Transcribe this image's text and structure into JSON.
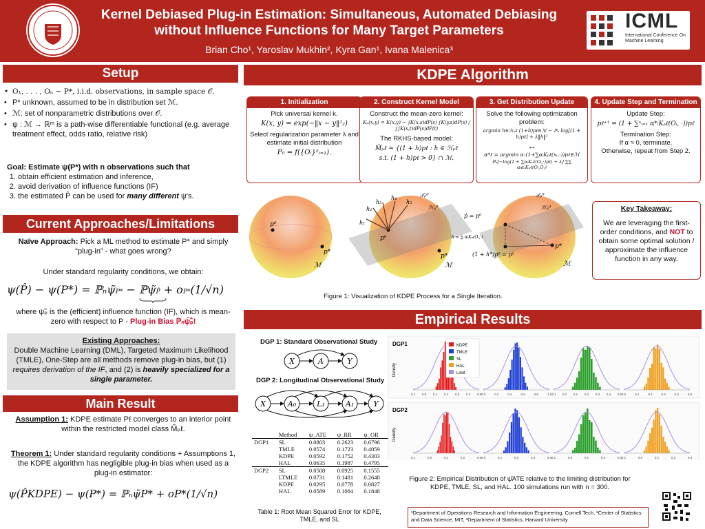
{
  "header": {
    "title": "Kernel Debiased Plug-in Estimation: Simultaneous, Automated Debiasing without Influence Functions for Many Target Parameters",
    "authors": "Brian Cho¹, Yaroslav Mukhin², Kyra Gan¹, Ivana Malenica³",
    "left_logo_text": "CORNELL UNIVERSITY",
    "icml_logo": "ICML",
    "icml_sub": "International Conference On Machine Learning",
    "colors": {
      "brand_red": "#b3261e",
      "accent_red": "#c8102e"
    }
  },
  "setup": {
    "title": "Setup",
    "items": [
      "O₁, . . . , Oₙ ∼ P*, i.i.d. observations, in sample space 𝒪.",
      "P* unknown, assumed to be in distribution set ℳ.",
      "ℳ: set of nonparametric distributions over 𝒪.",
      "ψ : ℳ → ℝᵐ is a path-wise differentiable functional (e.g. average treatment effect, odds ratio, relative risk)"
    ],
    "goal_prefix": "Goal: Estimate ψ(P*) with n observations such that",
    "goals": [
      "obtain efficient estimation and inference,",
      "avoid derivation of influence functions (IF)"
    ],
    "goal3_prefix": "the estimated P̂ can be used for ",
    "goal3_emph": "many different",
    "goal3_suffix": " ψ's."
  },
  "current": {
    "title": "Current Approaches/Limitations",
    "naive_label": "Naïve Approach:",
    "naive_text": " Pick a ML method to estimate P* and simply “plug-in” - what goes wrong?",
    "regularity": "Under standard regularity conditions, we obtain:",
    "equation_lhs": "ψ(P̂) − ψ(P*) = ℙₙψ̃",
    "equation_mid": "ℙψ̃",
    "equation_rhs": "+ o",
    "equation_tail": "(1/√n)",
    "where_text": "where ψ̃ₚ is the (efficient) influence function (IF), which is mean-zero with respect to P - ",
    "plugin_bias": "Plug-in Bias ℙₙψ̃ₚ̂!",
    "existing": {
      "title": "Existing Approaches:",
      "line1": "Double Machine Learning (DML), Targeted Maximum Likelihood (TMLE), One-Step are all methods remove plug-in bias, but (1) ",
      "emph1": "requires derivation of the IF",
      "line2": ", and (2) is ",
      "emph2": "heavily specialized for a single parameter."
    }
  },
  "main_result": {
    "title": "Main Result",
    "assumption_label": "Assumption 1:",
    "assumption_text": " KDPE estimate Pℓ converges to an interior point within the restricted model class M̃ₚℓ.",
    "theorem_label": "Theorem 1:",
    "theorem_text": " Under standard regularity conditions + Assumptions 1, the KDPE algorithm has negligible plug-in bias when used as a plug-in estimator:",
    "equation": "ψ(P̂KDPE) − ψ(P*) = ℙₙψ̃P* + oP*(1/√n)"
  },
  "kdpe": {
    "title": "KDPE Algorithm",
    "steps": [
      {
        "head": "1. Initialization",
        "l1": "Pick universal kernel k.",
        "f1": "K(x, y) = exp(−‖x − y‖²₂)",
        "l2": "Select regularization parameter λ and estimate initial distribution",
        "f2": "P₀ = f({Oᵢ}ⁿᵢ₌₁)."
      },
      {
        "head": "2. Construct Kernel Model",
        "l1": "Construct the mean-zero kernel:",
        "f1": "Kₚ(x,y) = K(x,y) − ∫K(x,s)dP(s) ∫K(y,s)dP(s) / ∫∫K(s,t)dP(s)dP(t)",
        "l2": "The RKHS-based model:",
        "f2": "M̃ₚℓ = {(1 + h)pℓ : h ∈ ℋₚℓ",
        "f3": "s.t. (1 + h)pℓ > 0} ∩ ℳ."
      },
      {
        "head": "3. Get Distribution Update",
        "l1": "Solve the following optimization problem:",
        "f1": "argmin h∈ℋₚℓ (1+h)pℓ∈ℳ − ℙₙ log[(1 + h)pℓ] + λ‖h‖²",
        "arrow": "↔",
        "f2": "α*ℓ = argmin α:(1+∑αᵢKₚℓ(xᵢ,·))pℓ∈ℳ",
        "f3": "ℙₙ[−log(1 + ∑αᵢKₚℓ(Oᵢ,·)pℓ) + λ] ∑∑ αᵢαⱼKₚℓ(Oᵢ,Oⱼ)"
      },
      {
        "head": "4. Update Step and Termination",
        "l1": "Update Step:",
        "f1": "pℓ⁺¹ = (1 + ∑ⁿᵢ₌₁ α*ᵢKₚℓ(Oᵢ, ·))pℓ",
        "l2": "Termination Step:",
        "l3": "If α ≈ 0, terminate.",
        "l4": "Otherwise, repeat from Step 2."
      }
    ],
    "fig1_caption": "Figure 1: Visualization of KDPE Process for a Single Iteration.",
    "fig1_labels": {
      "p0": "p⁰",
      "pstar": "p*",
      "M": "ℳ",
      "T": "𝒯ₚ⁰",
      "H": "ℋₚ⁰",
      "h1": "h₁",
      "h2": "h₂",
      "h3": "h₃",
      "h4": "h₄",
      "h5": "h₅",
      "phat": "p̂ = p⁰",
      "update": "(1 + h*)p⁰ = p¹",
      "hsum": "h = ∑ αᵢKₚ(Oᵢ,·)"
    }
  },
  "takeaway": {
    "title": "Key Takeaway:",
    "t1": "We are leveraging the first-order conditions, and ",
    "not": "NOT",
    "t2": " to obtain some optimal solution / approximate the influence function in any way."
  },
  "empirical": {
    "title": "Empirical Results",
    "dgp1_title": "DGP 1: Standard Observational Study",
    "dgp1_nodes": [
      "X",
      "A",
      "Y"
    ],
    "dgp2_title": "DGP 2: Longitudinal Observational Study",
    "dgp2_nodes": [
      "X",
      "A₀",
      "L₁",
      "A₁",
      "Y"
    ],
    "table": {
      "headers": [
        "",
        "Method",
        "ψ_ATE",
        "ψ_RR",
        "ψ_OR"
      ],
      "rows": [
        [
          "DGP1",
          "SL",
          "0.0803",
          "0.2623",
          "0.6796"
        ],
        [
          "",
          "TMLE",
          "0.0574",
          "0.1723",
          "0.4059"
        ],
        [
          "",
          "KDPE",
          "0.0592",
          "0.1752",
          "0.4303"
        ],
        [
          "",
          "HAL",
          "0.0635",
          "0.1987",
          "0.4795"
        ],
        [
          "DGP2",
          "SL",
          "0.0508",
          "0.0925",
          "0.1555"
        ],
        [
          "",
          "LTMLE",
          "0.0731",
          "0.1481",
          "0.2648"
        ],
        [
          "",
          "KDPE",
          "0.0295",
          "0.0778",
          "0.0827"
        ],
        [
          "",
          "HAL",
          "0.0589",
          "0.1084",
          "0.1848"
        ]
      ]
    },
    "table_caption": "Table 1: Root Mean Squared Error for KDPE, TMLE, and SL",
    "fig2_caption": "Figure 2: Empirical Distribution of ψ̂ATE relative to the limiting distribution for KDPE, TMLE, SL, and HAL. 100 simulations run with n = 300.",
    "histogram_panels": [
      "DGP1",
      "DGP2"
    ],
    "density_label": "Density",
    "legend": [
      {
        "name": "KDPE",
        "color": "#e41a1c"
      },
      {
        "name": "TMLE",
        "color": "#1f3fd6"
      },
      {
        "name": "SL",
        "color": "#2ca02c"
      },
      {
        "name": "HAL",
        "color": "#f0a020"
      },
      {
        "name": "Limit",
        "color": "#a98fe0"
      }
    ],
    "colors": [
      "#e41a1c",
      "#1f3fd6",
      "#2ca02c",
      "#f0a020"
    ],
    "dgp1_ticks": [
      [
        "0.1",
        "0.0",
        "0.1",
        "0.2",
        "0.3",
        "0.4",
        "0.5"
      ],
      [
        "0.0",
        "0.2",
        "0.4",
        "0.6",
        "0.8",
        "1.0"
      ],
      [
        "-0.1",
        "0.0",
        "0.1",
        "0.2",
        "0.3",
        "0.4",
        "0.5"
      ],
      [
        "0.0",
        "0.1",
        "0.2",
        "0.3",
        "0.4",
        "0.5"
      ]
    ],
    "dgp2_ticks": [
      [
        "0.1",
        "0.0",
        "0.1",
        "0.2",
        "0.3"
      ],
      [
        "0.0",
        "0.1",
        "0.2",
        "0.3",
        "0.4"
      ],
      [
        "0.1",
        "0.0",
        "0.1",
        "0.2",
        "0.3"
      ],
      [
        "0.1",
        "0.0",
        "0.1",
        "0.2",
        "0.3"
      ]
    ]
  },
  "footer": {
    "affiliations": "¹Department of Operations Research and Information Engineering, Cornell Tech, ²Center of Statistics and Data Science, MIT, ³Department of Statistics, Harvard University"
  }
}
